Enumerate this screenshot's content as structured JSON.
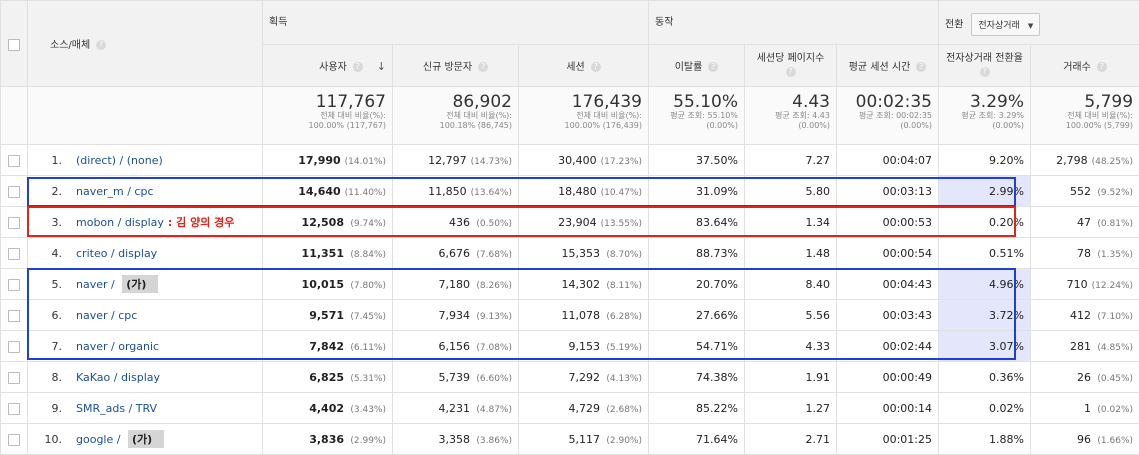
{
  "header": {
    "dimension_label": "소스/매체",
    "groups": {
      "acquisition": "획득",
      "behavior": "동작",
      "conversion": "전환"
    },
    "conversion_select": "전자상거래",
    "columns": {
      "users": "사용자",
      "new_users": "신규 방문자",
      "sessions": "세션",
      "bounce_rate": "이탈률",
      "pages_per_session": "세션당 페이지수",
      "avg_session_duration": "평균 세션 시간",
      "conversion_rate": "전자상거래 전환율",
      "transactions": "거래수"
    }
  },
  "totals": {
    "users": {
      "value": "117,767",
      "sub1": "전체 대비 비율(%):",
      "sub2": "100.00% (117,767)"
    },
    "new_users": {
      "value": "86,902",
      "sub1": "전체 대비 비율(%):",
      "sub2": "100.18% (86,745)"
    },
    "sessions": {
      "value": "176,439",
      "sub1": "전체 대비 비율(%):",
      "sub2": "100.00% (176,439)"
    },
    "bounce_rate": {
      "value": "55.10%",
      "sub1": "평균 조회: 55.10%",
      "sub2": "(0.00%)"
    },
    "pages_per_session": {
      "value": "4.43",
      "sub1": "평균 조회: 4.43",
      "sub2": "(0.00%)"
    },
    "avg_session_duration": {
      "value": "00:02:35",
      "sub1": "평균 조회: 00:02:35",
      "sub2": "(0.00%)"
    },
    "conversion_rate": {
      "value": "3.29%",
      "sub1": "평균 조회: 3.29%",
      "sub2": "(0.00%)"
    },
    "transactions": {
      "value": "5,799",
      "sub1": "전체 대비 비율(%):",
      "sub2": "100.00% (5,799)"
    }
  },
  "rows": [
    {
      "idx": "1.",
      "source": "(direct) / (none)",
      "users": "17,990",
      "users_pct": "(14.01%)",
      "new_users": "12,797",
      "new_users_pct": "(14.73%)",
      "sessions": "30,400",
      "sessions_pct": "(17.23%)",
      "bounce": "37.50%",
      "pps": "7.27",
      "duration": "00:04:07",
      "conv": "9.20%",
      "tx": "2,798",
      "tx_pct": "(48.25%)"
    },
    {
      "idx": "2.",
      "source": "naver_m / cpc",
      "users": "14,640",
      "users_pct": "(11.40%)",
      "new_users": "11,850",
      "new_users_pct": "(13.64%)",
      "sessions": "18,480",
      "sessions_pct": "(10.47%)",
      "bounce": "31.09%",
      "pps": "5.80",
      "duration": "00:03:13",
      "conv": "2.99%",
      "tx": "552",
      "tx_pct": "(9.52%)"
    },
    {
      "idx": "3.",
      "source": "mobon / display",
      "annotation": ": 김 양의 경우",
      "users": "12,508",
      "users_pct": "(9.74%)",
      "new_users": "436",
      "new_users_pct": "(0.50%)",
      "sessions": "23,904",
      "sessions_pct": "(13.55%)",
      "bounce": "83.64%",
      "pps": "1.34",
      "duration": "00:00:53",
      "conv": "0.20%",
      "tx": "47",
      "tx_pct": "(0.81%)"
    },
    {
      "idx": "4.",
      "source": "criteo / display",
      "users": "11,351",
      "users_pct": "(8.84%)",
      "new_users": "6,676",
      "new_users_pct": "(7.68%)",
      "sessions": "15,353",
      "sessions_pct": "(8.70%)",
      "bounce": "88.73%",
      "pps": "1.48",
      "duration": "00:00:54",
      "conv": "0.51%",
      "tx": "78",
      "tx_pct": "(1.35%)"
    },
    {
      "idx": "5.",
      "source": "naver / ",
      "tag": "(가)",
      "users": "10,015",
      "users_pct": "(7.80%)",
      "new_users": "7,180",
      "new_users_pct": "(8.26%)",
      "sessions": "14,302",
      "sessions_pct": "(8.11%)",
      "bounce": "20.70%",
      "pps": "8.40",
      "duration": "00:04:43",
      "conv": "4.96%",
      "tx": "710",
      "tx_pct": "(12.24%)"
    },
    {
      "idx": "6.",
      "source": "naver / cpc",
      "users": "9,571",
      "users_pct": "(7.45%)",
      "new_users": "7,934",
      "new_users_pct": "(9.13%)",
      "sessions": "11,078",
      "sessions_pct": "(6.28%)",
      "bounce": "27.66%",
      "pps": "5.56",
      "duration": "00:03:43",
      "conv": "3.72%",
      "tx": "412",
      "tx_pct": "(7.10%)"
    },
    {
      "idx": "7.",
      "source": "naver / organic",
      "users": "7,842",
      "users_pct": "(6.11%)",
      "new_users": "6,156",
      "new_users_pct": "(7.08%)",
      "sessions": "9,153",
      "sessions_pct": "(5.19%)",
      "bounce": "54.71%",
      "pps": "4.33",
      "duration": "00:02:44",
      "conv": "3.07%",
      "tx": "281",
      "tx_pct": "(4.85%)"
    },
    {
      "idx": "8.",
      "source": "KaKao / display",
      "users": "6,825",
      "users_pct": "(5.31%)",
      "new_users": "5,739",
      "new_users_pct": "(6.60%)",
      "sessions": "7,292",
      "sessions_pct": "(4.13%)",
      "bounce": "74.38%",
      "pps": "1.91",
      "duration": "00:00:49",
      "conv": "0.36%",
      "tx": "26",
      "tx_pct": "(0.45%)"
    },
    {
      "idx": "9.",
      "source": "SMR_ads / TRV",
      "users": "4,402",
      "users_pct": "(3.43%)",
      "new_users": "4,231",
      "new_users_pct": "(4.87%)",
      "sessions": "4,729",
      "sessions_pct": "(2.68%)",
      "bounce": "85.22%",
      "pps": "1.27",
      "duration": "00:00:14",
      "conv": "0.02%",
      "tx": "1",
      "tx_pct": "(0.02%)"
    },
    {
      "idx": "10.",
      "source": "google / ",
      "tag": "(가)",
      "users": "3,836",
      "users_pct": "(2.99%)",
      "new_users": "3,358",
      "new_users_pct": "(3.86%)",
      "sessions": "5,117",
      "sessions_pct": "(2.90%)",
      "bounce": "71.64%",
      "pps": "2.71",
      "duration": "00:01:25",
      "conv": "1.88%",
      "tx": "96",
      "tx_pct": "(1.66%)"
    }
  ],
  "highlight_conversion_rows": [
    1,
    4,
    5,
    6
  ],
  "colors": {
    "link": "#1a4f96",
    "blue_box": "#1f3fd6",
    "red_box": "#e2231a",
    "highlight": "#e4e6fb"
  },
  "icons": {
    "help": "question-circle-icon",
    "sort": "arrow-down-icon",
    "dropdown": "caret-down-icon"
  }
}
